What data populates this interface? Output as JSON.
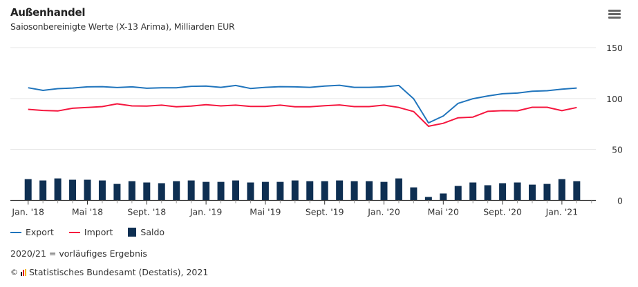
{
  "header": {
    "title": "Außenhandel",
    "subtitle": "Saiosonbereinigte Werte (X-13 Arima), Milliarden EUR",
    "menu_icon": "hamburger-menu-icon"
  },
  "colors": {
    "export": "#1f74bc",
    "import": "#f5163e",
    "saldo": "#0e2f52",
    "grid": "#e6e6e6",
    "axis": "#333333"
  },
  "chart_data": {
    "type": "line+bar",
    "title": "Außenhandel",
    "subtitle": "Saiosonbereinigte Werte (X-13 Arima), Milliarden EUR",
    "x": [
      "2018-01",
      "2018-02",
      "2018-03",
      "2018-04",
      "2018-05",
      "2018-06",
      "2018-07",
      "2018-08",
      "2018-09",
      "2018-10",
      "2018-11",
      "2018-12",
      "2019-01",
      "2019-02",
      "2019-03",
      "2019-04",
      "2019-05",
      "2019-06",
      "2019-07",
      "2019-08",
      "2019-09",
      "2019-10",
      "2019-11",
      "2019-12",
      "2020-01",
      "2020-02",
      "2020-03",
      "2020-04",
      "2020-05",
      "2020-06",
      "2020-07",
      "2020-08",
      "2020-09",
      "2020-10",
      "2020-11",
      "2020-12",
      "2021-01",
      "2021-02"
    ],
    "x_tick_labels": [
      {
        "index": 0,
        "label": "Jan. '18"
      },
      {
        "index": 4,
        "label": "Mai '18"
      },
      {
        "index": 8,
        "label": "Sept. '18"
      },
      {
        "index": 12,
        "label": "Jan. '19"
      },
      {
        "index": 16,
        "label": "Mai '19"
      },
      {
        "index": 20,
        "label": "Sept. '19"
      },
      {
        "index": 24,
        "label": "Jan. '20"
      },
      {
        "index": 28,
        "label": "Mai '20"
      },
      {
        "index": 32,
        "label": "Sept. '20"
      },
      {
        "index": 36,
        "label": "Jan. '21"
      }
    ],
    "y_ticks": [
      "0",
      "50",
      "100",
      "150"
    ],
    "ylim": [
      0,
      150
    ],
    "y_axis_side": "right",
    "grid": true,
    "legend_placement": "bottom-left",
    "series": [
      {
        "name": "Export",
        "type": "line",
        "values": [
          110.6,
          108,
          109.7,
          110.3,
          111.5,
          111.7,
          110.8,
          111.5,
          110.1,
          110.6,
          110.6,
          112,
          112.2,
          111,
          112.8,
          109.9,
          111,
          111.7,
          111.5,
          111,
          112.2,
          113,
          111,
          111,
          111.5,
          112.8,
          99.8,
          76.1,
          82.9,
          95.3,
          99.8,
          102.5,
          104.7,
          105.4,
          107.2,
          107.7,
          109.2,
          110.3
        ]
      },
      {
        "name": "Import",
        "type": "line",
        "values": [
          89.4,
          88.3,
          87.8,
          90.5,
          91.2,
          92.1,
          94.8,
          92.8,
          92.6,
          93.5,
          91.9,
          92.6,
          93.9,
          92.8,
          93.5,
          92.3,
          92.3,
          93.5,
          91.9,
          91.9,
          93,
          93.7,
          92.1,
          92.1,
          93.5,
          91.2,
          87.2,
          72.8,
          75.7,
          81.1,
          81.8,
          87.4,
          88.1,
          88,
          91.4,
          91.4,
          88.1,
          91.2
        ]
      },
      {
        "name": "Saldo",
        "type": "bar",
        "values": [
          20.9,
          19.6,
          21.6,
          20.3,
          20.3,
          19.6,
          16.2,
          18.9,
          17.6,
          16.9,
          18.9,
          19.6,
          18.2,
          18.2,
          19.6,
          17.6,
          18.2,
          18.2,
          19.6,
          18.9,
          18.9,
          19.6,
          18.9,
          18.9,
          18.2,
          21.6,
          12.8,
          3.4,
          6.8,
          14.2,
          17.6,
          14.9,
          16.9,
          17.6,
          15.5,
          16.2,
          20.9,
          18.9
        ]
      }
    ],
    "note": "2020/21 = vorläufiges Ergebnis",
    "source": "© Statistisches Bundesamt (Destatis), 2021"
  },
  "legend": [
    "Export",
    "Import",
    "Saldo"
  ],
  "footer": {
    "note": "2020/21 = vorläufiges Ergebnis",
    "copyright": "©",
    "source": "Statistisches Bundesamt (Destatis), 2021"
  }
}
